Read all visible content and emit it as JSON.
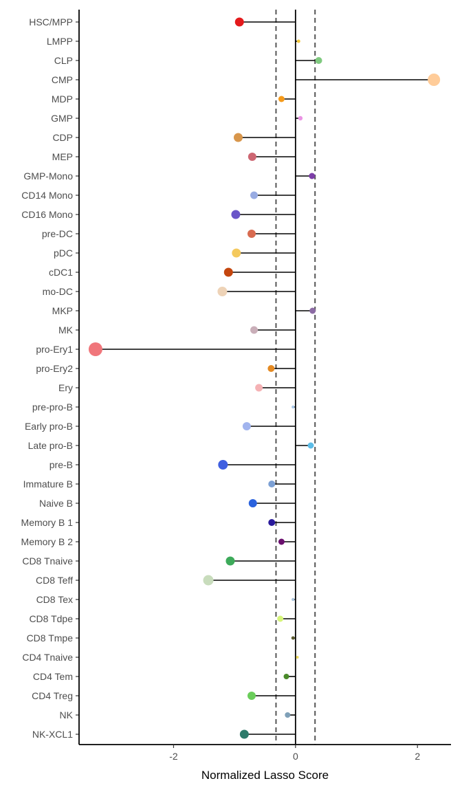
{
  "chart_data": {
    "type": "lollipop",
    "xlabel": "Normalized Lasso Score",
    "ylabel": "",
    "xlim": [
      -3.55,
      2.55
    ],
    "xticks": [
      -2,
      0,
      2
    ],
    "xtick_labels": [
      "-2",
      "0",
      "2"
    ],
    "reference_lines": [
      -0.32,
      0.32
    ],
    "grid": false,
    "categories": [
      "HSC/MPP",
      "LMPP",
      "CLP",
      "CMP",
      "MDP",
      "GMP",
      "CDP",
      "MEP",
      "GMP-Mono",
      "CD14 Mono",
      "CD16 Mono",
      "pre-DC",
      "pDC",
      "cDC1",
      "mo-DC",
      "MKP",
      "MK",
      "pro-Ery1",
      "pro-Ery2",
      "Ery",
      "pre-pro-B",
      "Early pro-B",
      "Late pro-B",
      "pre-B",
      "Immature B",
      "Naive B",
      "Memory B 1",
      "Memory B 2",
      "CD8 Tnaive",
      "CD8 Teff",
      "CD8 Tex",
      "CD8 Tdpe",
      "CD8 Tmpe",
      "CD4 Tnaive",
      "CD4 Tem",
      "CD4 Treg",
      "NK",
      "NK-XCL1"
    ],
    "values": [
      -0.92,
      0.05,
      0.38,
      2.27,
      -0.23,
      0.08,
      -0.94,
      -0.71,
      0.27,
      -0.68,
      -0.98,
      -0.72,
      -0.97,
      -1.1,
      -1.2,
      0.28,
      -0.68,
      -3.28,
      -0.4,
      -0.6,
      -0.04,
      -0.8,
      0.25,
      -1.19,
      -0.39,
      -0.7,
      -0.39,
      -0.23,
      -1.07,
      -1.43,
      -0.04,
      -0.25,
      -0.04,
      0.03,
      -0.15,
      -0.72,
      -0.13,
      -0.84
    ],
    "colors": [
      "#e41a1c",
      "#f3c73d",
      "#7fc97f",
      "#ffcc99",
      "#f59a1a",
      "#ea93e4",
      "#d8964b",
      "#cd6672",
      "#7d3ea8",
      "#98abe2",
      "#6a55c8",
      "#d86b50",
      "#f4c95d",
      "#c4460e",
      "#eed3b7",
      "#8c6ba4",
      "#c9aeb8",
      "#f0767b",
      "#e48a23",
      "#f5b2b5",
      "#a9c8e8",
      "#a1b4ee",
      "#5cbde8",
      "#3f5fe0",
      "#7ca0d4",
      "#2a62de",
      "#2a1a9c",
      "#6a0f6e",
      "#3daa5a",
      "#c8dcbc",
      "#a9c3db",
      "#d6f57a",
      "#5a5a2e",
      "#ecd85a",
      "#4a8a2a",
      "#6acd5a",
      "#7fa0b8",
      "#2d7a6a"
    ],
    "dot_sizes": [
      6.5,
      2.5,
      5,
      9,
      4.5,
      3.2,
      6.5,
      6,
      4.5,
      5.5,
      6.5,
      6,
      6.5,
      6.5,
      7,
      4.5,
      5.5,
      10,
      5,
      5.5,
      2.2,
      6,
      4.5,
      7,
      5,
      6,
      5,
      4.5,
      6.5,
      7.5,
      2.2,
      4.5,
      2.5,
      2,
      4,
      6,
      4,
      6.5
    ]
  }
}
